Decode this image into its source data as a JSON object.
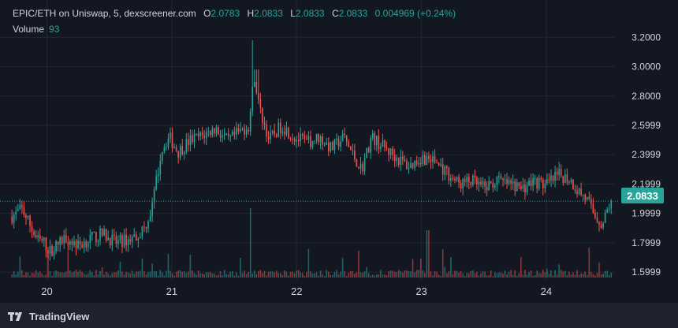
{
  "header": {
    "symbol": "EPIC/ETH on Uniswap, 5, dexscreener.com",
    "open_label": "O",
    "open": "2.0783",
    "high_label": "H",
    "high": "2.0833",
    "low_label": "L",
    "low": "2.0833",
    "close_label": "C",
    "close": "2.0833",
    "change": "0.004969 (+0.24%)"
  },
  "volume_legend": {
    "label": "Volume",
    "value": "93"
  },
  "price_tag": "2.0833",
  "branding": {
    "name": "TradingView"
  },
  "colors": {
    "up": "#26a69a",
    "down": "#ef5350",
    "background": "#131722",
    "grid": "#242733",
    "axis_text": "#d1d4dc"
  },
  "chart_data": {
    "type": "candlestick",
    "series": [
      {
        "name": "EPIC/ETH",
        "timeframe": "5"
      }
    ],
    "x_ticks": [
      "20",
      "21",
      "22",
      "23",
      "24"
    ],
    "y_ticks": [
      "3.2000",
      "3.0000",
      "2.8000",
      "2.5999",
      "2.3999",
      "2.1999",
      "1.9999",
      "1.7999",
      "1.5999"
    ],
    "ylim": [
      1.52,
      3.25
    ],
    "xlim": [
      19.7,
      24.55
    ],
    "last_price": 2.0833,
    "price_path": [
      [
        19.72,
        1.98
      ],
      [
        19.8,
        2.03
      ],
      [
        19.86,
        1.93
      ],
      [
        19.92,
        1.82
      ],
      [
        19.98,
        1.8
      ],
      [
        20.02,
        1.74
      ],
      [
        20.08,
        1.78
      ],
      [
        20.15,
        1.84
      ],
      [
        20.25,
        1.78
      ],
      [
        20.35,
        1.83
      ],
      [
        20.45,
        1.86
      ],
      [
        20.55,
        1.8
      ],
      [
        20.65,
        1.82
      ],
      [
        20.72,
        1.85
      ],
      [
        20.78,
        1.9
      ],
      [
        20.84,
        2.03
      ],
      [
        20.88,
        2.24
      ],
      [
        20.92,
        2.44
      ],
      [
        20.98,
        2.52
      ],
      [
        21.05,
        2.42
      ],
      [
        21.15,
        2.5
      ],
      [
        21.25,
        2.53
      ],
      [
        21.35,
        2.58
      ],
      [
        21.45,
        2.49
      ],
      [
        21.55,
        2.56
      ],
      [
        21.62,
        2.6
      ],
      [
        21.66,
        2.95
      ],
      [
        21.7,
        2.72
      ],
      [
        21.78,
        2.5
      ],
      [
        21.88,
        2.6
      ],
      [
        21.98,
        2.52
      ],
      [
        22.08,
        2.48
      ],
      [
        22.18,
        2.52
      ],
      [
        22.28,
        2.44
      ],
      [
        22.38,
        2.52
      ],
      [
        22.45,
        2.4
      ],
      [
        22.52,
        2.3
      ],
      [
        22.6,
        2.52
      ],
      [
        22.7,
        2.45
      ],
      [
        22.8,
        2.38
      ],
      [
        22.9,
        2.32
      ],
      [
        23.0,
        2.38
      ],
      [
        23.1,
        2.36
      ],
      [
        23.2,
        2.28
      ],
      [
        23.3,
        2.2
      ],
      [
        23.4,
        2.22
      ],
      [
        23.5,
        2.17
      ],
      [
        23.6,
        2.22
      ],
      [
        23.7,
        2.2
      ],
      [
        23.8,
        2.17
      ],
      [
        23.9,
        2.22
      ],
      [
        24.0,
        2.19
      ],
      [
        24.1,
        2.26
      ],
      [
        24.18,
        2.24
      ],
      [
        24.25,
        2.16
      ],
      [
        24.32,
        2.1
      ],
      [
        24.38,
        2.0
      ],
      [
        24.45,
        1.92
      ],
      [
        24.5,
        2.05
      ],
      [
        24.52,
        2.0833
      ]
    ]
  }
}
